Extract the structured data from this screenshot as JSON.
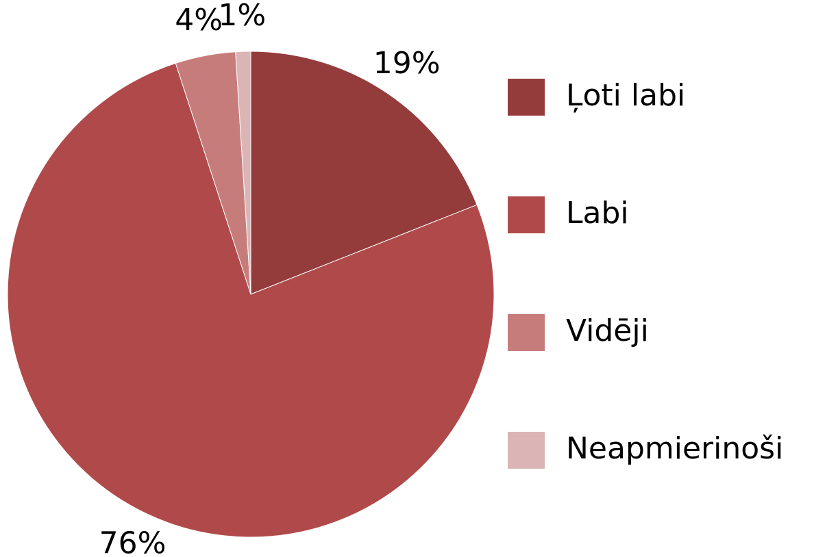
{
  "chart_data": {
    "type": "pie",
    "categories": [
      "Ļoti labi",
      "Labi",
      "Vidēji",
      "Neapmierinoši"
    ],
    "values": [
      19,
      76,
      4,
      1
    ],
    "value_labels": [
      "19%",
      "76%",
      "4%",
      "1%"
    ],
    "colors": [
      "#943b3b",
      "#b04a4a",
      "#c77c7c",
      "#dbb5b5"
    ],
    "legend": "right"
  }
}
